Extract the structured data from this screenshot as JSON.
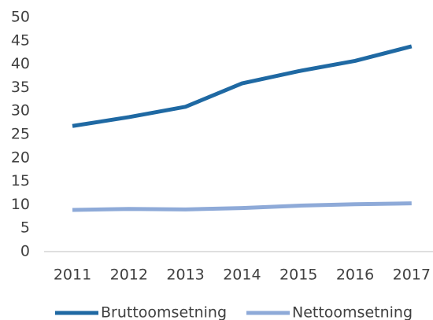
{
  "chart_data": {
    "type": "line",
    "categories": [
      "2011",
      "2012",
      "2013",
      "2014",
      "2015",
      "2016",
      "2017"
    ],
    "series": [
      {
        "name": "Bruttoomsetning",
        "color": "#1f69a3",
        "values": [
          26.8,
          28.7,
          30.9,
          35.9,
          38.5,
          40.7,
          43.8
        ]
      },
      {
        "name": "Nettoomsetning",
        "color": "#8eaad8",
        "values": [
          8.9,
          9.1,
          9.0,
          9.3,
          9.8,
          10.1,
          10.3
        ]
      }
    ],
    "ylim": [
      0,
      50
    ],
    "yticks": [
      0,
      5,
      10,
      15,
      20,
      25,
      30,
      35,
      40,
      45,
      50
    ],
    "grid": false,
    "legend": "bottom"
  }
}
